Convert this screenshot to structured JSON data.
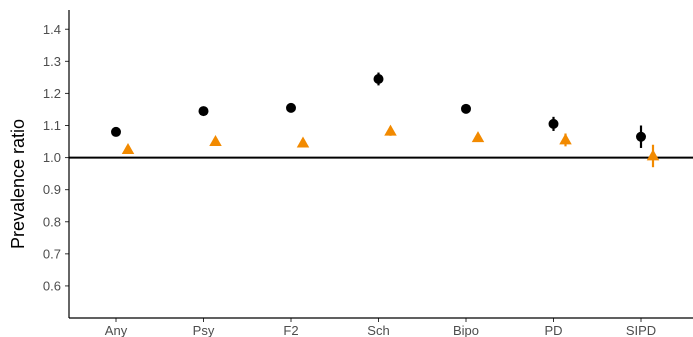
{
  "chart_data": {
    "type": "scatter",
    "title": "",
    "xlabel": "",
    "ylabel": "Prevalence ratio",
    "ylim": [
      0.5,
      1.46
    ],
    "yticks": [
      0.6,
      0.7,
      0.8,
      0.9,
      1.0,
      1.1,
      1.2,
      1.3,
      1.4
    ],
    "ytick_labels": [
      "0.6",
      "0.7",
      "0.8",
      "0.9",
      "1.0",
      "1.1",
      "1.2",
      "1.3",
      "1.4"
    ],
    "categories": [
      "Any",
      "Psy",
      "F2",
      "Sch",
      "Bipo",
      "PD",
      "SIPD"
    ],
    "reference_line": 1.0,
    "grid": false,
    "series": [
      {
        "marker": "circle",
        "color": "#000000",
        "values": [
          1.08,
          1.145,
          1.155,
          1.245,
          1.152,
          1.105,
          1.065
        ],
        "ci_low": [
          1.075,
          1.138,
          1.147,
          1.225,
          1.138,
          1.083,
          1.03
        ],
        "ci_high": [
          1.085,
          1.152,
          1.163,
          1.265,
          1.166,
          1.127,
          1.1
        ]
      },
      {
        "marker": "triangle",
        "color": "#f28a00",
        "values": [
          1.025,
          1.05,
          1.045,
          1.082,
          1.062,
          1.055,
          1.005
        ],
        "ci_low": [
          1.021,
          1.045,
          1.04,
          1.068,
          1.051,
          1.035,
          0.97
        ],
        "ci_high": [
          1.029,
          1.055,
          1.05,
          1.096,
          1.073,
          1.075,
          1.04
        ]
      }
    ]
  }
}
